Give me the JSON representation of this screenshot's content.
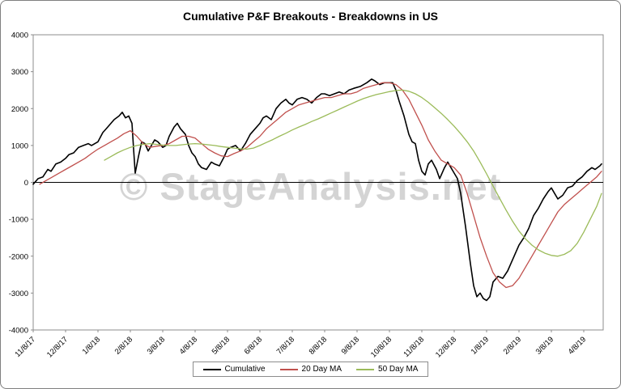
{
  "title": "Cumulative P&F Breakouts - Breakdowns in US",
  "watermark": "© StageAnalysis.net",
  "legend": {
    "items": [
      {
        "label": "Cumulative",
        "color": "#000000"
      },
      {
        "label": "20 Day MA",
        "color": "#C0504D"
      },
      {
        "label": "50 Day MA",
        "color": "#9BBB59"
      }
    ]
  },
  "chart_data": {
    "type": "line",
    "title": "Cumulative P&F Breakouts - Breakdowns in US",
    "x_tick_labels": [
      "11/8/17",
      "12/8/17",
      "1/8/18",
      "2/8/18",
      "3/8/18",
      "4/8/18",
      "5/8/18",
      "6/8/18",
      "7/8/18",
      "8/8/18",
      "9/8/18",
      "10/8/18",
      "11/8/18",
      "12/8/18",
      "1/8/19",
      "2/8/19",
      "3/8/19",
      "4/8/19"
    ],
    "x_unit": "months since 11/8/17 (tick index = month)",
    "x_max": 17.6,
    "ylim": [
      -4000,
      4000
    ],
    "y_ticks": [
      -4000,
      -3000,
      -2000,
      -1000,
      0,
      1000,
      2000,
      3000,
      4000
    ],
    "grid": false,
    "legend_position": "bottom",
    "series": [
      {
        "name": "Cumulative",
        "color": "#000000",
        "width": 1.6,
        "points": [
          [
            0,
            -50
          ],
          [
            0.15,
            100
          ],
          [
            0.3,
            150
          ],
          [
            0.45,
            350
          ],
          [
            0.55,
            300
          ],
          [
            0.7,
            500
          ],
          [
            0.85,
            550
          ],
          [
            1,
            650
          ],
          [
            1.1,
            750
          ],
          [
            1.25,
            800
          ],
          [
            1.4,
            950
          ],
          [
            1.55,
            1000
          ],
          [
            1.7,
            1050
          ],
          [
            1.8,
            1000
          ],
          [
            2,
            1100
          ],
          [
            2.15,
            1350
          ],
          [
            2.3,
            1500
          ],
          [
            2.5,
            1700
          ],
          [
            2.65,
            1800
          ],
          [
            2.75,
            1900
          ],
          [
            2.85,
            1750
          ],
          [
            2.95,
            1800
          ],
          [
            3.05,
            1600
          ],
          [
            3.1,
            900
          ],
          [
            3.15,
            250
          ],
          [
            3.25,
            700
          ],
          [
            3.35,
            1100
          ],
          [
            3.45,
            1050
          ],
          [
            3.55,
            850
          ],
          [
            3.65,
            1000
          ],
          [
            3.75,
            1150
          ],
          [
            3.85,
            1100
          ],
          [
            4,
            950
          ],
          [
            4.1,
            1000
          ],
          [
            4.2,
            1250
          ],
          [
            4.35,
            1500
          ],
          [
            4.45,
            1600
          ],
          [
            4.55,
            1450
          ],
          [
            4.7,
            1300
          ],
          [
            4.8,
            1000
          ],
          [
            4.9,
            800
          ],
          [
            5,
            700
          ],
          [
            5.1,
            500
          ],
          [
            5.2,
            400
          ],
          [
            5.35,
            350
          ],
          [
            5.5,
            550
          ],
          [
            5.6,
            500
          ],
          [
            5.75,
            450
          ],
          [
            5.9,
            700
          ],
          [
            6,
            900
          ],
          [
            6.1,
            950
          ],
          [
            6.25,
            1000
          ],
          [
            6.4,
            850
          ],
          [
            6.55,
            1050
          ],
          [
            6.7,
            1300
          ],
          [
            6.85,
            1450
          ],
          [
            7,
            1600
          ],
          [
            7.1,
            1750
          ],
          [
            7.2,
            1800
          ],
          [
            7.35,
            1700
          ],
          [
            7.5,
            2000
          ],
          [
            7.65,
            2150
          ],
          [
            7.8,
            2250
          ],
          [
            7.9,
            2150
          ],
          [
            8,
            2100
          ],
          [
            8.15,
            2250
          ],
          [
            8.3,
            2300
          ],
          [
            8.45,
            2250
          ],
          [
            8.6,
            2150
          ],
          [
            8.75,
            2300
          ],
          [
            8.9,
            2400
          ],
          [
            9,
            2400
          ],
          [
            9.15,
            2350
          ],
          [
            9.3,
            2400
          ],
          [
            9.45,
            2450
          ],
          [
            9.6,
            2400
          ],
          [
            9.75,
            2500
          ],
          [
            9.9,
            2550
          ],
          [
            10.1,
            2600
          ],
          [
            10.3,
            2700
          ],
          [
            10.45,
            2800
          ],
          [
            10.55,
            2750
          ],
          [
            10.7,
            2650
          ],
          [
            10.85,
            2700
          ],
          [
            11,
            2700
          ],
          [
            11.1,
            2700
          ],
          [
            11.2,
            2500
          ],
          [
            11.3,
            2200
          ],
          [
            11.45,
            1800
          ],
          [
            11.6,
            1300
          ],
          [
            11.7,
            1100
          ],
          [
            11.8,
            1050
          ],
          [
            11.9,
            600
          ],
          [
            12,
            300
          ],
          [
            12.1,
            200
          ],
          [
            12.2,
            500
          ],
          [
            12.3,
            600
          ],
          [
            12.45,
            350
          ],
          [
            12.55,
            100
          ],
          [
            12.7,
            400
          ],
          [
            12.8,
            550
          ],
          [
            12.9,
            400
          ],
          [
            13,
            250
          ],
          [
            13.1,
            100
          ],
          [
            13.2,
            -300
          ],
          [
            13.35,
            -1200
          ],
          [
            13.5,
            -2200
          ],
          [
            13.6,
            -2800
          ],
          [
            13.7,
            -3100
          ],
          [
            13.8,
            -3000
          ],
          [
            13.9,
            -3150
          ],
          [
            14,
            -3200
          ],
          [
            14.1,
            -3100
          ],
          [
            14.2,
            -2700
          ],
          [
            14.35,
            -2550
          ],
          [
            14.5,
            -2600
          ],
          [
            14.65,
            -2400
          ],
          [
            14.8,
            -2100
          ],
          [
            15,
            -1700
          ],
          [
            15.15,
            -1500
          ],
          [
            15.3,
            -1250
          ],
          [
            15.45,
            -900
          ],
          [
            15.6,
            -700
          ],
          [
            15.75,
            -450
          ],
          [
            15.9,
            -250
          ],
          [
            16,
            -150
          ],
          [
            16.1,
            -300
          ],
          [
            16.2,
            -450
          ],
          [
            16.35,
            -350
          ],
          [
            16.5,
            -150
          ],
          [
            16.65,
            -100
          ],
          [
            16.8,
            50
          ],
          [
            16.95,
            150
          ],
          [
            17.1,
            300
          ],
          [
            17.25,
            400
          ],
          [
            17.35,
            350
          ],
          [
            17.5,
            450
          ],
          [
            17.55,
            500
          ]
        ]
      },
      {
        "name": "20 Day MA",
        "color": "#C0504D",
        "width": 1.3,
        "points": [
          [
            0.2,
            -50
          ],
          [
            0.4,
            50
          ],
          [
            0.6,
            150
          ],
          [
            0.8,
            250
          ],
          [
            1,
            350
          ],
          [
            1.2,
            450
          ],
          [
            1.4,
            550
          ],
          [
            1.6,
            650
          ],
          [
            1.8,
            780
          ],
          [
            2,
            900
          ],
          [
            2.2,
            1000
          ],
          [
            2.4,
            1100
          ],
          [
            2.6,
            1200
          ],
          [
            2.8,
            1320
          ],
          [
            3,
            1400
          ],
          [
            3.2,
            1250
          ],
          [
            3.4,
            1050
          ],
          [
            3.6,
            950
          ],
          [
            3.8,
            980
          ],
          [
            4,
            1000
          ],
          [
            4.2,
            1050
          ],
          [
            4.4,
            1150
          ],
          [
            4.6,
            1250
          ],
          [
            4.8,
            1250
          ],
          [
            5,
            1200
          ],
          [
            5.2,
            1050
          ],
          [
            5.4,
            900
          ],
          [
            5.6,
            800
          ],
          [
            5.8,
            720
          ],
          [
            6,
            700
          ],
          [
            6.2,
            780
          ],
          [
            6.4,
            850
          ],
          [
            6.6,
            950
          ],
          [
            6.8,
            1100
          ],
          [
            7,
            1250
          ],
          [
            7.2,
            1450
          ],
          [
            7.4,
            1600
          ],
          [
            7.6,
            1750
          ],
          [
            7.8,
            1900
          ],
          [
            8,
            2000
          ],
          [
            8.2,
            2100
          ],
          [
            8.4,
            2150
          ],
          [
            8.6,
            2200
          ],
          [
            8.8,
            2250
          ],
          [
            9,
            2300
          ],
          [
            9.2,
            2300
          ],
          [
            9.4,
            2350
          ],
          [
            9.6,
            2400
          ],
          [
            9.8,
            2400
          ],
          [
            10,
            2450
          ],
          [
            10.2,
            2550
          ],
          [
            10.4,
            2600
          ],
          [
            10.6,
            2650
          ],
          [
            10.8,
            2700
          ],
          [
            11,
            2700
          ],
          [
            11.2,
            2650
          ],
          [
            11.4,
            2500
          ],
          [
            11.6,
            2250
          ],
          [
            11.8,
            1900
          ],
          [
            12,
            1550
          ],
          [
            12.2,
            1150
          ],
          [
            12.4,
            850
          ],
          [
            12.6,
            600
          ],
          [
            12.8,
            500
          ],
          [
            13,
            400
          ],
          [
            13.2,
            200
          ],
          [
            13.4,
            -300
          ],
          [
            13.6,
            -900
          ],
          [
            13.8,
            -1500
          ],
          [
            14,
            -2000
          ],
          [
            14.2,
            -2450
          ],
          [
            14.4,
            -2700
          ],
          [
            14.6,
            -2850
          ],
          [
            14.8,
            -2800
          ],
          [
            15,
            -2600
          ],
          [
            15.2,
            -2300
          ],
          [
            15.4,
            -2000
          ],
          [
            15.6,
            -1700
          ],
          [
            15.8,
            -1400
          ],
          [
            16,
            -1100
          ],
          [
            16.2,
            -800
          ],
          [
            16.4,
            -600
          ],
          [
            16.6,
            -450
          ],
          [
            16.8,
            -300
          ],
          [
            17,
            -150
          ],
          [
            17.2,
            0
          ],
          [
            17.4,
            150
          ],
          [
            17.55,
            300
          ]
        ]
      },
      {
        "name": "50 Day MA",
        "color": "#9BBB59",
        "width": 1.3,
        "points": [
          [
            2.2,
            600
          ],
          [
            2.4,
            700
          ],
          [
            2.6,
            800
          ],
          [
            2.8,
            880
          ],
          [
            3,
            950
          ],
          [
            3.2,
            1000
          ],
          [
            3.4,
            1030
          ],
          [
            3.6,
            1050
          ],
          [
            3.8,
            1030
          ],
          [
            4,
            1010
          ],
          [
            4.2,
            1000
          ],
          [
            4.4,
            1000
          ],
          [
            4.6,
            1020
          ],
          [
            4.8,
            1040
          ],
          [
            5,
            1050
          ],
          [
            5.2,
            1040
          ],
          [
            5.4,
            1020
          ],
          [
            5.6,
            1000
          ],
          [
            5.8,
            970
          ],
          [
            6,
            950
          ],
          [
            6.2,
            930
          ],
          [
            6.4,
            910
          ],
          [
            6.6,
            900
          ],
          [
            6.8,
            930
          ],
          [
            7,
            1000
          ],
          [
            7.2,
            1080
          ],
          [
            7.4,
            1160
          ],
          [
            7.6,
            1250
          ],
          [
            7.8,
            1330
          ],
          [
            8,
            1420
          ],
          [
            8.2,
            1500
          ],
          [
            8.4,
            1570
          ],
          [
            8.6,
            1650
          ],
          [
            8.8,
            1720
          ],
          [
            9,
            1800
          ],
          [
            9.2,
            1880
          ],
          [
            9.4,
            1960
          ],
          [
            9.6,
            2040
          ],
          [
            9.8,
            2120
          ],
          [
            10,
            2200
          ],
          [
            10.2,
            2270
          ],
          [
            10.4,
            2330
          ],
          [
            10.6,
            2380
          ],
          [
            10.8,
            2420
          ],
          [
            11,
            2460
          ],
          [
            11.2,
            2490
          ],
          [
            11.4,
            2500
          ],
          [
            11.6,
            2470
          ],
          [
            11.8,
            2400
          ],
          [
            12,
            2300
          ],
          [
            12.2,
            2170
          ],
          [
            12.4,
            2020
          ],
          [
            12.6,
            1870
          ],
          [
            12.8,
            1700
          ],
          [
            13,
            1520
          ],
          [
            13.2,
            1320
          ],
          [
            13.4,
            1100
          ],
          [
            13.6,
            850
          ],
          [
            13.8,
            550
          ],
          [
            14,
            230
          ],
          [
            14.2,
            -100
          ],
          [
            14.4,
            -430
          ],
          [
            14.6,
            -750
          ],
          [
            14.8,
            -1050
          ],
          [
            15,
            -1320
          ],
          [
            15.2,
            -1530
          ],
          [
            15.4,
            -1700
          ],
          [
            15.6,
            -1830
          ],
          [
            15.8,
            -1920
          ],
          [
            16,
            -1980
          ],
          [
            16.2,
            -2000
          ],
          [
            16.4,
            -1950
          ],
          [
            16.6,
            -1850
          ],
          [
            16.8,
            -1650
          ],
          [
            17,
            -1350
          ],
          [
            17.2,
            -1000
          ],
          [
            17.4,
            -650
          ],
          [
            17.55,
            -300
          ]
        ]
      }
    ]
  }
}
